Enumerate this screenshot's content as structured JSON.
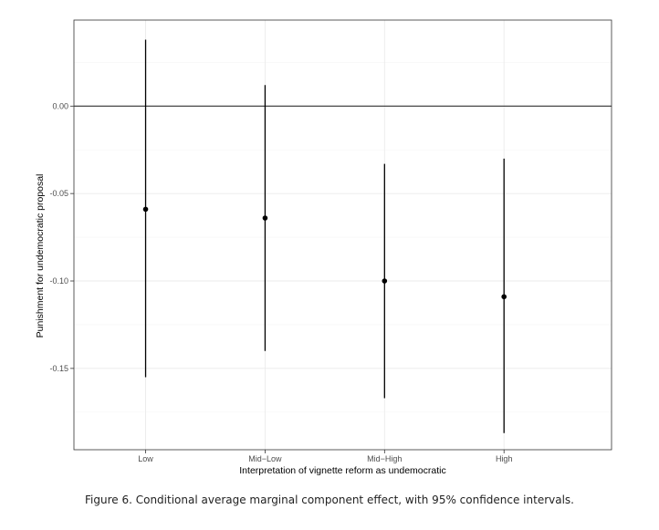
{
  "chart_data": {
    "type": "scatter",
    "style": "point estimates with 95% confidence interval error bars",
    "categories": [
      "Low",
      "Mid−Low",
      "Mid−High",
      "High"
    ],
    "estimates": [
      -0.059,
      -0.064,
      -0.1,
      -0.109
    ],
    "ci_lower": [
      -0.155,
      -0.14,
      -0.167,
      -0.187
    ],
    "ci_upper": [
      0.038,
      0.012,
      -0.033,
      -0.03
    ],
    "y_ticks": [
      0.0,
      -0.05,
      -0.1,
      -0.15
    ],
    "y_tick_labels": [
      "0.00",
      "-0.05",
      "-0.10",
      "-0.15"
    ],
    "ylim": [
      -0.1965,
      0.0492
    ],
    "reference_line_y": 0,
    "xlabel": "Interpretation of vignette reform as undemocratic",
    "ylabel": "Punishment for undemocratic proposal",
    "grid": true,
    "legend": "none",
    "colors": {
      "point": "#000000",
      "grid": "#ebebeb",
      "border": "#333333"
    }
  },
  "caption": "Figure 6. Conditional average marginal component effect, with 95% confidence intervals."
}
